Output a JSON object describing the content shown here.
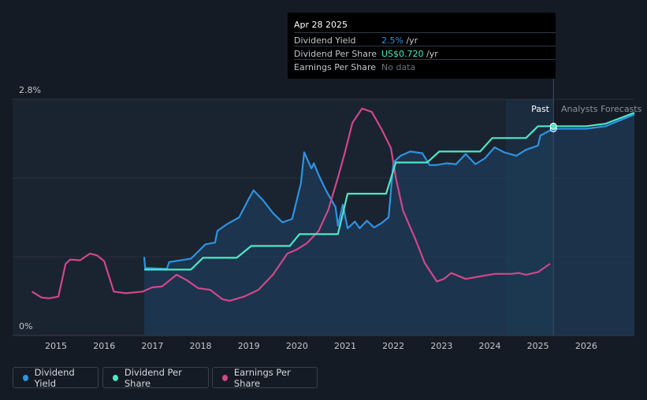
{
  "tooltip": {
    "date": "Apr 28 2025",
    "rows": [
      {
        "label": "Dividend Yield",
        "value": "2.5%",
        "unit": " /yr",
        "color": "#2e93e0"
      },
      {
        "label": "Dividend Per Share",
        "value": "US$0.720",
        "unit": " /yr",
        "color": "#4de8c5"
      },
      {
        "label": "Earnings Per Share",
        "value": "No data",
        "unit": "",
        "color": "#6b7280"
      }
    ]
  },
  "labels": {
    "past": "Past",
    "forecast": "Analysts Forecasts"
  },
  "legend": [
    {
      "label": "Dividend Yield",
      "color": "#2e93e0"
    },
    {
      "label": "Dividend Per Share",
      "color": "#4de8c5"
    },
    {
      "label": "Earnings Per Share",
      "color": "#d0478a"
    }
  ],
  "colors": {
    "background": "#151b24",
    "past_shade": "#1a2330",
    "forecast_shade": "#1b2c3f",
    "yield_fill": "#1d3b57",
    "grid": "#2b323d"
  },
  "chart_data": {
    "type": "line",
    "x_ticks": [
      2015,
      2016,
      2017,
      2018,
      2019,
      2020,
      2021,
      2022,
      2023,
      2024,
      2025,
      2026
    ],
    "xlim": [
      2014.1,
      2027.0
    ],
    "y_ticks": [
      {
        "value": 2.8,
        "label": "2.8%"
      },
      {
        "value": 0,
        "label": "0%"
      }
    ],
    "ylim": [
      0,
      2.8
    ],
    "forecast_start": 2024.33,
    "current_date": 2025.32,
    "series": [
      {
        "name": "Dividend Yield",
        "color": "#2e93e0",
        "filled": true,
        "points": [
          [
            2016.83,
            0.93
          ],
          [
            2016.85,
            0.8
          ],
          [
            2017.3,
            0.79
          ],
          [
            2017.35,
            0.87
          ],
          [
            2017.8,
            0.91
          ],
          [
            2018.1,
            1.08
          ],
          [
            2018.3,
            1.1
          ],
          [
            2018.35,
            1.24
          ],
          [
            2018.55,
            1.32
          ],
          [
            2018.8,
            1.4
          ],
          [
            2019.0,
            1.62
          ],
          [
            2019.1,
            1.72
          ],
          [
            2019.3,
            1.6
          ],
          [
            2019.5,
            1.45
          ],
          [
            2019.7,
            1.34
          ],
          [
            2019.9,
            1.38
          ],
          [
            2020.08,
            1.8
          ],
          [
            2020.15,
            2.17
          ],
          [
            2020.3,
            1.98
          ],
          [
            2020.35,
            2.04
          ],
          [
            2020.45,
            1.9
          ],
          [
            2020.6,
            1.72
          ],
          [
            2020.8,
            1.52
          ],
          [
            2020.85,
            1.3
          ],
          [
            2020.95,
            1.55
          ],
          [
            2021.05,
            1.27
          ],
          [
            2021.2,
            1.35
          ],
          [
            2021.3,
            1.27
          ],
          [
            2021.45,
            1.36
          ],
          [
            2021.6,
            1.28
          ],
          [
            2021.75,
            1.33
          ],
          [
            2021.9,
            1.4
          ],
          [
            2022.0,
            2.05
          ],
          [
            2022.15,
            2.13
          ],
          [
            2022.35,
            2.18
          ],
          [
            2022.6,
            2.16
          ],
          [
            2022.75,
            2.02
          ],
          [
            2022.9,
            2.02
          ],
          [
            2023.1,
            2.04
          ],
          [
            2023.3,
            2.03
          ],
          [
            2023.5,
            2.15
          ],
          [
            2023.7,
            2.03
          ],
          [
            2023.9,
            2.1
          ],
          [
            2024.1,
            2.23
          ],
          [
            2024.3,
            2.17
          ],
          [
            2024.55,
            2.13
          ],
          [
            2024.75,
            2.2
          ],
          [
            2025.0,
            2.25
          ],
          [
            2025.05,
            2.37
          ],
          [
            2025.32,
            2.45
          ],
          [
            2025.6,
            2.45
          ],
          [
            2026.0,
            2.45
          ],
          [
            2026.4,
            2.48
          ],
          [
            2027.0,
            2.62
          ]
        ]
      },
      {
        "name": "Dividend Per Share",
        "color": "#4de8c5",
        "filled": false,
        "points": [
          [
            2016.83,
            0.78
          ],
          [
            2017.8,
            0.78
          ],
          [
            2018.05,
            0.92
          ],
          [
            2018.75,
            0.92
          ],
          [
            2019.05,
            1.06
          ],
          [
            2019.85,
            1.06
          ],
          [
            2020.05,
            1.2
          ],
          [
            2020.85,
            1.2
          ],
          [
            2021.05,
            1.68
          ],
          [
            2021.85,
            1.68
          ],
          [
            2022.05,
            2.05
          ],
          [
            2022.7,
            2.05
          ],
          [
            2022.95,
            2.18
          ],
          [
            2023.8,
            2.18
          ],
          [
            2024.05,
            2.34
          ],
          [
            2024.75,
            2.34
          ],
          [
            2025.0,
            2.48
          ],
          [
            2025.32,
            2.48
          ],
          [
            2025.6,
            2.48
          ],
          [
            2026.0,
            2.48
          ],
          [
            2026.4,
            2.51
          ],
          [
            2027.0,
            2.64
          ]
        ]
      },
      {
        "name": "Earnings Per Share",
        "color": "#d0478a",
        "filled": false,
        "points": [
          [
            2014.5,
            0.52
          ],
          [
            2014.7,
            0.45
          ],
          [
            2014.85,
            0.44
          ],
          [
            2015.05,
            0.46
          ],
          [
            2015.2,
            0.85
          ],
          [
            2015.3,
            0.9
          ],
          [
            2015.5,
            0.89
          ],
          [
            2015.7,
            0.97
          ],
          [
            2015.85,
            0.95
          ],
          [
            2016.0,
            0.88
          ],
          [
            2016.2,
            0.52
          ],
          [
            2016.45,
            0.5
          ],
          [
            2016.8,
            0.52
          ],
          [
            2017.0,
            0.57
          ],
          [
            2017.2,
            0.58
          ],
          [
            2017.35,
            0.65
          ],
          [
            2017.5,
            0.72
          ],
          [
            2017.7,
            0.66
          ],
          [
            2017.95,
            0.56
          ],
          [
            2018.2,
            0.54
          ],
          [
            2018.45,
            0.43
          ],
          [
            2018.6,
            0.41
          ],
          [
            2018.9,
            0.46
          ],
          [
            2019.2,
            0.54
          ],
          [
            2019.5,
            0.72
          ],
          [
            2019.8,
            0.97
          ],
          [
            2020.0,
            1.02
          ],
          [
            2020.2,
            1.09
          ],
          [
            2020.45,
            1.24
          ],
          [
            2020.65,
            1.49
          ],
          [
            2020.85,
            1.87
          ],
          [
            2021.0,
            2.18
          ],
          [
            2021.15,
            2.52
          ],
          [
            2021.35,
            2.69
          ],
          [
            2021.55,
            2.65
          ],
          [
            2021.75,
            2.45
          ],
          [
            2021.95,
            2.22
          ],
          [
            2022.05,
            1.87
          ],
          [
            2022.2,
            1.48
          ],
          [
            2022.45,
            1.15
          ],
          [
            2022.65,
            0.86
          ],
          [
            2022.9,
            0.64
          ],
          [
            2023.05,
            0.67
          ],
          [
            2023.2,
            0.74
          ],
          [
            2023.5,
            0.67
          ],
          [
            2023.8,
            0.7
          ],
          [
            2024.1,
            0.73
          ],
          [
            2024.45,
            0.73
          ],
          [
            2024.6,
            0.74
          ],
          [
            2024.75,
            0.72
          ],
          [
            2025.0,
            0.75
          ],
          [
            2025.25,
            0.85
          ]
        ]
      }
    ]
  }
}
